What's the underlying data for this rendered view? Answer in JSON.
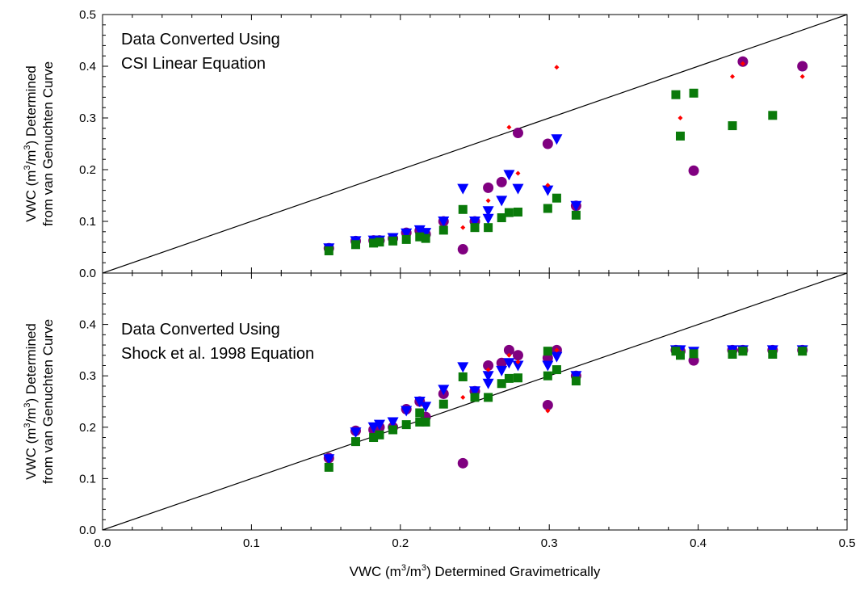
{
  "figure": {
    "xlabel_prefix": "VWC (m",
    "xlabel_sup1": "3",
    "xlabel_mid": "/m",
    "xlabel_sup2": "3",
    "xlabel_suffix": ") Determined Gravimetrically",
    "ylabel_line1_prefix": "VWC (m",
    "ylabel_line1_sup1": "3",
    "ylabel_line1_mid": "/m",
    "ylabel_line1_sup2": "3",
    "ylabel_line1_suffix": ") Determined",
    "ylabel_line2": "from van Genuchten Curve"
  },
  "colors": {
    "circle": "#800080",
    "triangle": "#0000ff",
    "diamond": "#ff0000",
    "square": "#0a7a0a",
    "axis": "#000000"
  },
  "chart_data": [
    {
      "type": "scatter",
      "panel": "top",
      "annotation_line1": "Data Converted Using",
      "annotation_line2": "CSI Linear Equation",
      "xlim": [
        0,
        0.5
      ],
      "ylim": [
        0,
        0.5
      ],
      "x_ticks": [
        "0.0",
        "0.1",
        "0.2",
        "0.3",
        "0.4",
        "0.5"
      ],
      "y_ticks": [
        "0.0",
        "0.1",
        "0.2",
        "0.3",
        "0.4",
        "0.5"
      ],
      "reference_line": "1:1",
      "series": [
        {
          "marker": "circle",
          "points": [
            [
              0.152,
              0.048
            ],
            [
              0.17,
              0.062
            ],
            [
              0.182,
              0.063
            ],
            [
              0.186,
              0.063
            ],
            [
              0.195,
              0.067
            ],
            [
              0.204,
              0.078
            ],
            [
              0.213,
              0.082
            ],
            [
              0.217,
              0.075
            ],
            [
              0.229,
              0.1
            ],
            [
              0.242,
              0.046
            ],
            [
              0.25,
              0.1
            ],
            [
              0.259,
              0.165
            ],
            [
              0.268,
              0.176
            ],
            [
              0.279,
              0.271
            ],
            [
              0.299,
              0.25
            ],
            [
              0.318,
              0.13
            ],
            [
              0.397,
              0.198
            ],
            [
              0.43,
              0.409
            ],
            [
              0.47,
              0.4
            ]
          ]
        },
        {
          "marker": "triangle",
          "points": [
            [
              0.152,
              0.048
            ],
            [
              0.17,
              0.062
            ],
            [
              0.182,
              0.063
            ],
            [
              0.186,
              0.063
            ],
            [
              0.195,
              0.068
            ],
            [
              0.204,
              0.077
            ],
            [
              0.213,
              0.083
            ],
            [
              0.217,
              0.078
            ],
            [
              0.229,
              0.1
            ],
            [
              0.242,
              0.163
            ],
            [
              0.25,
              0.1
            ],
            [
              0.259,
              0.12
            ],
            [
              0.259,
              0.105
            ],
            [
              0.268,
              0.14
            ],
            [
              0.273,
              0.19
            ],
            [
              0.279,
              0.163
            ],
            [
              0.299,
              0.16
            ],
            [
              0.305,
              0.259
            ],
            [
              0.318,
              0.13
            ]
          ]
        },
        {
          "marker": "diamond",
          "points": [
            [
              0.242,
              0.088
            ],
            [
              0.259,
              0.14
            ],
            [
              0.273,
              0.282
            ],
            [
              0.279,
              0.193
            ],
            [
              0.299,
              0.17
            ],
            [
              0.305,
              0.398
            ],
            [
              0.388,
              0.3
            ],
            [
              0.423,
              0.38
            ],
            [
              0.43,
              0.405
            ],
            [
              0.47,
              0.38
            ]
          ]
        },
        {
          "marker": "square",
          "points": [
            [
              0.152,
              0.043
            ],
            [
              0.17,
              0.055
            ],
            [
              0.182,
              0.058
            ],
            [
              0.186,
              0.06
            ],
            [
              0.195,
              0.062
            ],
            [
              0.204,
              0.065
            ],
            [
              0.213,
              0.07
            ],
            [
              0.217,
              0.067
            ],
            [
              0.229,
              0.083
            ],
            [
              0.242,
              0.123
            ],
            [
              0.25,
              0.088
            ],
            [
              0.259,
              0.088
            ],
            [
              0.268,
              0.107
            ],
            [
              0.273,
              0.117
            ],
            [
              0.279,
              0.118
            ],
            [
              0.299,
              0.125
            ],
            [
              0.305,
              0.145
            ],
            [
              0.318,
              0.112
            ],
            [
              0.385,
              0.345
            ],
            [
              0.388,
              0.265
            ],
            [
              0.397,
              0.348
            ],
            [
              0.423,
              0.285
            ],
            [
              0.45,
              0.305
            ]
          ]
        }
      ]
    },
    {
      "type": "scatter",
      "panel": "bottom",
      "annotation_line1": "Data Converted Using",
      "annotation_line2": "Shock et al. 1998 Equation",
      "xlim": [
        0,
        0.5
      ],
      "ylim": [
        0,
        0.5
      ],
      "x_ticks": [
        "0.0",
        "0.1",
        "0.2",
        "0.3",
        "0.4",
        "0.5"
      ],
      "y_ticks": [
        "0.0",
        "0.1",
        "0.2",
        "0.3",
        "0.4"
      ],
      "reference_line": "1:1",
      "series": [
        {
          "marker": "circle",
          "points": [
            [
              0.152,
              0.14
            ],
            [
              0.17,
              0.193
            ],
            [
              0.182,
              0.195
            ],
            [
              0.186,
              0.2
            ],
            [
              0.195,
              0.2
            ],
            [
              0.204,
              0.235
            ],
            [
              0.213,
              0.25
            ],
            [
              0.217,
              0.22
            ],
            [
              0.229,
              0.265
            ],
            [
              0.242,
              0.13
            ],
            [
              0.25,
              0.27
            ],
            [
              0.259,
              0.32
            ],
            [
              0.268,
              0.325
            ],
            [
              0.273,
              0.35
            ],
            [
              0.279,
              0.34
            ],
            [
              0.299,
              0.243
            ],
            [
              0.299,
              0.335
            ],
            [
              0.305,
              0.35
            ],
            [
              0.318,
              0.3
            ],
            [
              0.385,
              0.35
            ],
            [
              0.388,
              0.348
            ],
            [
              0.397,
              0.33
            ],
            [
              0.423,
              0.35
            ],
            [
              0.43,
              0.35
            ],
            [
              0.45,
              0.35
            ],
            [
              0.47,
              0.35
            ]
          ]
        },
        {
          "marker": "triangle",
          "points": [
            [
              0.152,
              0.138
            ],
            [
              0.17,
              0.19
            ],
            [
              0.182,
              0.2
            ],
            [
              0.186,
              0.205
            ],
            [
              0.195,
              0.21
            ],
            [
              0.204,
              0.232
            ],
            [
              0.213,
              0.25
            ],
            [
              0.217,
              0.24
            ],
            [
              0.229,
              0.273
            ],
            [
              0.242,
              0.317
            ],
            [
              0.25,
              0.27
            ],
            [
              0.259,
              0.3
            ],
            [
              0.259,
              0.285
            ],
            [
              0.268,
              0.31
            ],
            [
              0.273,
              0.325
            ],
            [
              0.279,
              0.32
            ],
            [
              0.299,
              0.32
            ],
            [
              0.305,
              0.337
            ],
            [
              0.318,
              0.3
            ],
            [
              0.385,
              0.35
            ],
            [
              0.388,
              0.35
            ],
            [
              0.397,
              0.347
            ],
            [
              0.423,
              0.35
            ],
            [
              0.43,
              0.35
            ],
            [
              0.45,
              0.35
            ],
            [
              0.47,
              0.35
            ]
          ]
        },
        {
          "marker": "diamond",
          "points": [
            [
              0.242,
              0.258
            ],
            [
              0.259,
              0.312
            ],
            [
              0.273,
              0.34
            ],
            [
              0.279,
              0.327
            ],
            [
              0.299,
              0.232
            ],
            [
              0.305,
              0.35
            ],
            [
              0.388,
              0.347
            ],
            [
              0.423,
              0.347
            ],
            [
              0.43,
              0.35
            ],
            [
              0.47,
              0.35
            ]
          ]
        },
        {
          "marker": "square",
          "points": [
            [
              0.152,
              0.122
            ],
            [
              0.17,
              0.172
            ],
            [
              0.182,
              0.18
            ],
            [
              0.186,
              0.185
            ],
            [
              0.195,
              0.195
            ],
            [
              0.204,
              0.205
            ],
            [
              0.213,
              0.21
            ],
            [
              0.213,
              0.228
            ],
            [
              0.217,
              0.21
            ],
            [
              0.229,
              0.245
            ],
            [
              0.242,
              0.298
            ],
            [
              0.25,
              0.258
            ],
            [
              0.259,
              0.258
            ],
            [
              0.268,
              0.285
            ],
            [
              0.273,
              0.295
            ],
            [
              0.279,
              0.296
            ],
            [
              0.299,
              0.3
            ],
            [
              0.299,
              0.348
            ],
            [
              0.305,
              0.312
            ],
            [
              0.318,
              0.29
            ],
            [
              0.385,
              0.348
            ],
            [
              0.388,
              0.34
            ],
            [
              0.397,
              0.343
            ],
            [
              0.423,
              0.342
            ],
            [
              0.43,
              0.348
            ],
            [
              0.45,
              0.342
            ],
            [
              0.47,
              0.348
            ]
          ]
        }
      ]
    }
  ]
}
